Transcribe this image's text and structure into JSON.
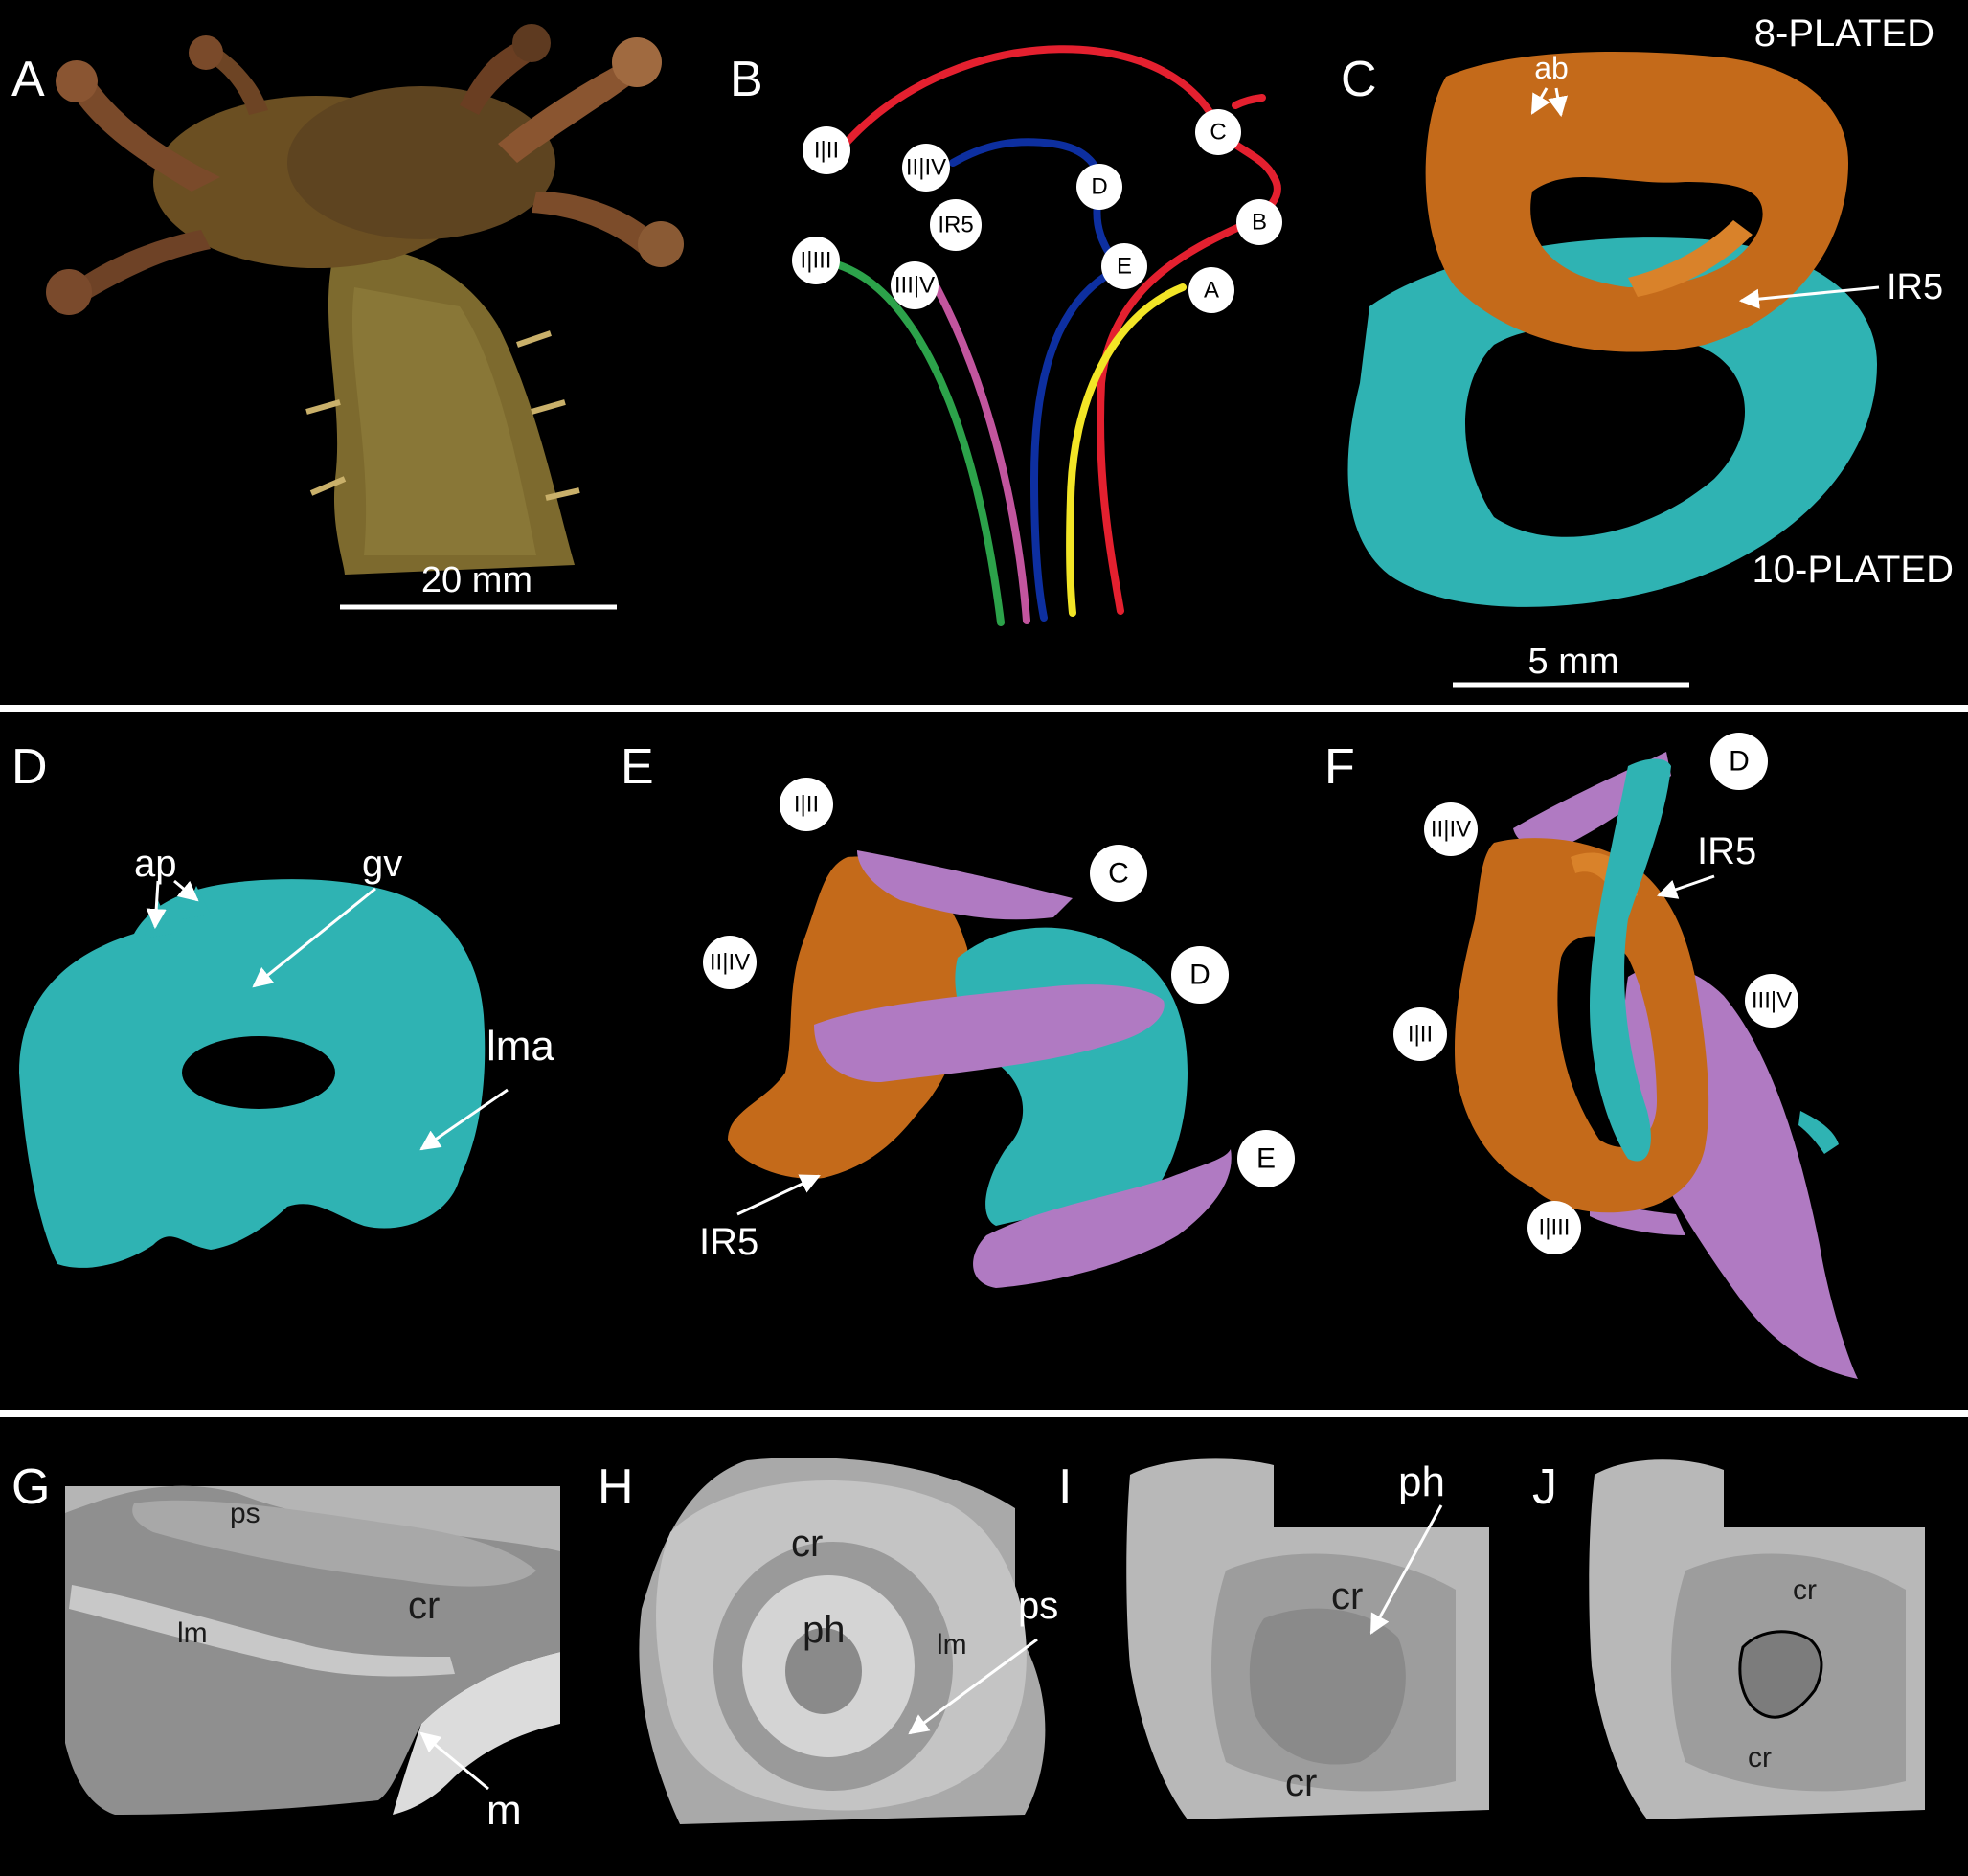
{
  "panels": [
    "A",
    "B",
    "C",
    "D",
    "E",
    "F",
    "G",
    "H",
    "I",
    "J"
  ],
  "panel_a": {
    "scale": "20 mm"
  },
  "panel_b": {
    "nodes": {
      "i_ii": "I|II",
      "ii_iv": "II|IV",
      "i_iii": "I|III",
      "iii_v": "III|V",
      "ir5": "IR5",
      "a": "A",
      "b": "B",
      "c": "C",
      "d": "D",
      "e": "E"
    },
    "colors": {
      "red": "#e4202f",
      "blue": "#0d2fa0",
      "green": "#2ca24a",
      "pink": "#c2559e",
      "yellow": "#f2e526"
    }
  },
  "panel_c": {
    "top_label": "8-PLATED",
    "bottom_label": "10-PLATED",
    "ab": "ab",
    "ir5": "IR5",
    "scale": "5 mm",
    "colors": {
      "orange": "#c46a1a",
      "cyan": "#2fb3b3"
    }
  },
  "panel_d": {
    "ap": "ap",
    "gv": "gv",
    "lma": "lma"
  },
  "panel_e": {
    "i_ii": "I|II",
    "ii_iv": "II|IV",
    "c": "C",
    "d": "D",
    "e": "E",
    "ir5": "IR5",
    "colors": {
      "purple": "#b07ac2"
    }
  },
  "panel_f": {
    "d": "D",
    "ii_iv": "II|IV",
    "ir5": "IR5",
    "i_ii": "I|II",
    "iii_v": "III|V",
    "i_iii": "I|III"
  },
  "panel_g": {
    "ps": "ps",
    "cr": "cr",
    "lm": "lm",
    "m": "m"
  },
  "panel_h": {
    "cr": "cr",
    "ph": "ph",
    "lm": "lm",
    "ps": "ps"
  },
  "panel_i": {
    "ph": "ph",
    "cr_top": "cr",
    "cr_bottom": "cr"
  },
  "panel_j": {
    "cr_top": "cr",
    "cr_bottom": "cr"
  }
}
